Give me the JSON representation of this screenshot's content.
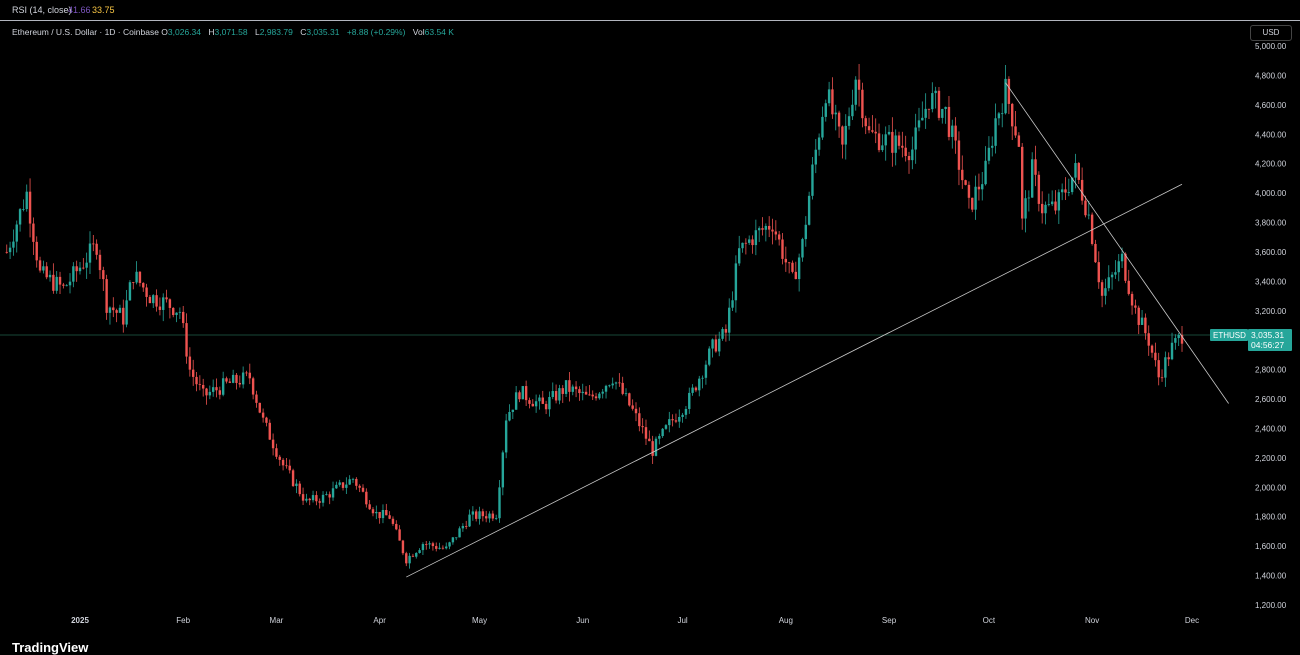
{
  "rsi": {
    "label": "RSI (14, close)",
    "value1": "41.66",
    "value2": "33.75"
  },
  "legend": {
    "symbol": "Ethereum / U.S. Dollar · 1D · Coinbase",
    "o_label": "O",
    "o_value": "3,026.34",
    "h_label": "H",
    "h_value": "3,071.58",
    "l_label": "L",
    "l_value": "2,983.79",
    "c_label": "C",
    "c_value": "3,035.31",
    "change": "+8.88 (+0.29%)",
    "vol_label": "Vol",
    "vol_value": "63.54 K"
  },
  "currency_button": "USD",
  "price_tag": {
    "symbol": "ETHUSD",
    "price": "3,035.31",
    "countdown": "04:56:27"
  },
  "brand": "TradingView",
  "colors": {
    "up": "#26a69a",
    "down": "#ef5350",
    "background": "#000000",
    "trendline": "#c8c8c8",
    "price_tag": "#26a69a"
  },
  "chart_data": {
    "type": "candlestick",
    "ylim": [
      1200,
      5000
    ],
    "y_ticks": [
      "1,200.00",
      "1,400.00",
      "1,600.00",
      "1,800.00",
      "2,000.00",
      "2,200.00",
      "2,400.00",
      "2,600.00",
      "2,800.00",
      "3,000.00",
      "3,200.00",
      "3,400.00",
      "3,600.00",
      "3,800.00",
      "4,000.00",
      "4,200.00",
      "4,400.00",
      "4,600.00",
      "4,800.00",
      "5,000.00"
    ],
    "x_ticks": [
      {
        "label": "2025",
        "date": "2025-01-01"
      },
      {
        "label": "Feb",
        "date": "2025-02-01"
      },
      {
        "label": "Mar",
        "date": "2025-03-01"
      },
      {
        "label": "Apr",
        "date": "2025-04-01"
      },
      {
        "label": "May",
        "date": "2025-05-01"
      },
      {
        "label": "Jun",
        "date": "2025-06-01"
      },
      {
        "label": "Jul",
        "date": "2025-07-01"
      },
      {
        "label": "Aug",
        "date": "2025-08-01"
      },
      {
        "label": "Sep",
        "date": "2025-09-01"
      },
      {
        "label": "Oct",
        "date": "2025-10-01"
      },
      {
        "label": "Nov",
        "date": "2025-11-01"
      },
      {
        "label": "Dec",
        "date": "2025-12-01"
      }
    ],
    "current_price": 3035.31,
    "trendlines": [
      {
        "from": {
          "date": "2025-04-09",
          "price": 1390
        },
        "to": {
          "date": "2025-11-28",
          "price": 4060
        }
      },
      {
        "from": {
          "date": "2025-10-06",
          "price": 4750
        },
        "to": {
          "date": "2025-12-12",
          "price": 2570
        }
      }
    ],
    "closes": [
      {
        "date": "2024-12-10",
        "price": 3600
      },
      {
        "date": "2024-12-16",
        "price": 4000
      },
      {
        "date": "2024-12-20",
        "price": 3450
      },
      {
        "date": "2024-12-27",
        "price": 3350
      },
      {
        "date": "2025-01-06",
        "price": 3650
      },
      {
        "date": "2025-01-09",
        "price": 3250
      },
      {
        "date": "2025-01-14",
        "price": 3150
      },
      {
        "date": "2025-01-17",
        "price": 3450
      },
      {
        "date": "2025-01-22",
        "price": 3300
      },
      {
        "date": "2025-01-27",
        "price": 3250
      },
      {
        "date": "2025-01-31",
        "price": 3200
      },
      {
        "date": "2025-02-03",
        "price": 2800
      },
      {
        "date": "2025-02-07",
        "price": 2620
      },
      {
        "date": "2025-02-14",
        "price": 2700
      },
      {
        "date": "2025-02-21",
        "price": 2750
      },
      {
        "date": "2025-02-25",
        "price": 2450
      },
      {
        "date": "2025-03-03",
        "price": 2150
      },
      {
        "date": "2025-03-10",
        "price": 1900
      },
      {
        "date": "2025-03-15",
        "price": 1930
      },
      {
        "date": "2025-03-24",
        "price": 2060
      },
      {
        "date": "2025-03-31",
        "price": 1820
      },
      {
        "date": "2025-04-04",
        "price": 1800
      },
      {
        "date": "2025-04-09",
        "price": 1510
      },
      {
        "date": "2025-04-14",
        "price": 1620
      },
      {
        "date": "2025-04-21",
        "price": 1580
      },
      {
        "date": "2025-04-28",
        "price": 1800
      },
      {
        "date": "2025-05-06",
        "price": 1820
      },
      {
        "date": "2025-05-09",
        "price": 2480
      },
      {
        "date": "2025-05-13",
        "price": 2650
      },
      {
        "date": "2025-05-20",
        "price": 2550
      },
      {
        "date": "2025-05-27",
        "price": 2680
      },
      {
        "date": "2025-06-03",
        "price": 2600
      },
      {
        "date": "2025-06-10",
        "price": 2750
      },
      {
        "date": "2025-06-16",
        "price": 2520
      },
      {
        "date": "2025-06-22",
        "price": 2250
      },
      {
        "date": "2025-06-27",
        "price": 2430
      },
      {
        "date": "2025-07-03",
        "price": 2600
      },
      {
        "date": "2025-07-10",
        "price": 2950
      },
      {
        "date": "2025-07-14",
        "price": 3050
      },
      {
        "date": "2025-07-18",
        "price": 3600
      },
      {
        "date": "2025-07-22",
        "price": 3700
      },
      {
        "date": "2025-07-28",
        "price": 3800
      },
      {
        "date": "2025-08-03",
        "price": 3400
      },
      {
        "date": "2025-08-06",
        "price": 3650
      },
      {
        "date": "2025-08-09",
        "price": 4150
      },
      {
        "date": "2025-08-13",
        "price": 4700
      },
      {
        "date": "2025-08-18",
        "price": 4300
      },
      {
        "date": "2025-08-22",
        "price": 4800
      },
      {
        "date": "2025-08-26",
        "price": 4400
      },
      {
        "date": "2025-09-01",
        "price": 4350
      },
      {
        "date": "2025-09-08",
        "price": 4300
      },
      {
        "date": "2025-09-13",
        "price": 4650
      },
      {
        "date": "2025-09-18",
        "price": 4550
      },
      {
        "date": "2025-09-22",
        "price": 4200
      },
      {
        "date": "2025-09-25",
        "price": 3900
      },
      {
        "date": "2025-09-30",
        "price": 4150
      },
      {
        "date": "2025-10-03",
        "price": 4500
      },
      {
        "date": "2025-10-06",
        "price": 4700
      },
      {
        "date": "2025-10-10",
        "price": 4350
      },
      {
        "date": "2025-10-11",
        "price": 3800
      },
      {
        "date": "2025-10-14",
        "price": 4150
      },
      {
        "date": "2025-10-17",
        "price": 3900
      },
      {
        "date": "2025-10-21",
        "price": 3900
      },
      {
        "date": "2025-10-27",
        "price": 4150
      },
      {
        "date": "2025-10-31",
        "price": 3850
      },
      {
        "date": "2025-11-04",
        "price": 3300
      },
      {
        "date": "2025-11-10",
        "price": 3550
      },
      {
        "date": "2025-11-14",
        "price": 3200
      },
      {
        "date": "2025-11-18",
        "price": 3000
      },
      {
        "date": "2025-11-21",
        "price": 2750
      },
      {
        "date": "2025-11-25",
        "price": 2950
      },
      {
        "date": "2025-11-28",
        "price": 3035
      }
    ]
  }
}
